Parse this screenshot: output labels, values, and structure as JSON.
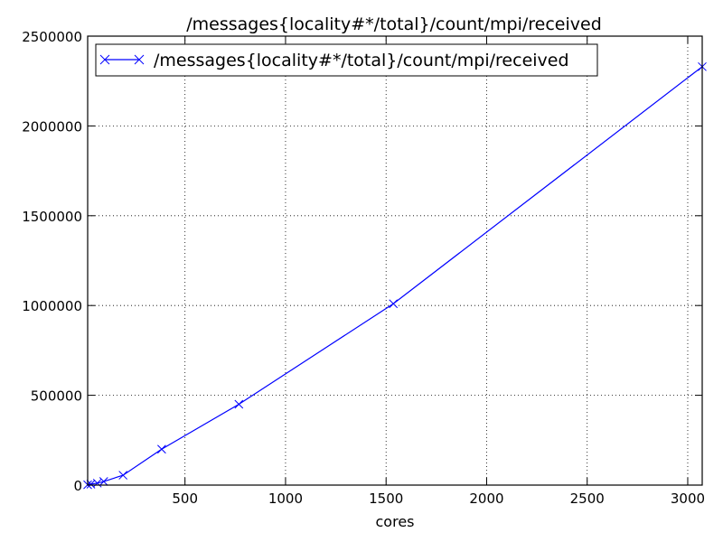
{
  "chart_data": {
    "type": "line",
    "title": "/messages{locality#*/total}/count/mpi/received",
    "xlabel": "cores",
    "ylabel": "",
    "xlim": [
      16,
      3072
    ],
    "ylim": [
      0,
      2500000
    ],
    "x_ticks": [
      500,
      1000,
      1500,
      2000,
      2500,
      3000
    ],
    "x_tick_labels": [
      "500",
      "1000",
      "1500",
      "2000",
      "2500",
      "3000"
    ],
    "y_ticks": [
      0,
      500000,
      1000000,
      1500000,
      2000000,
      2500000
    ],
    "y_tick_labels": [
      "0",
      "500000",
      "1000000",
      "1500000",
      "2000000",
      "2500000"
    ],
    "grid": true,
    "legend_position": "top-left",
    "series": [
      {
        "name": "/messages{locality#*/total}/count/mpi/received",
        "color": "#0000ff",
        "marker": "x",
        "x": [
          16,
          32,
          64,
          96,
          192,
          384,
          768,
          1536,
          3072
        ],
        "y": [
          2000,
          5000,
          11000,
          20000,
          55000,
          200000,
          450000,
          1010000,
          2330000
        ]
      }
    ]
  }
}
